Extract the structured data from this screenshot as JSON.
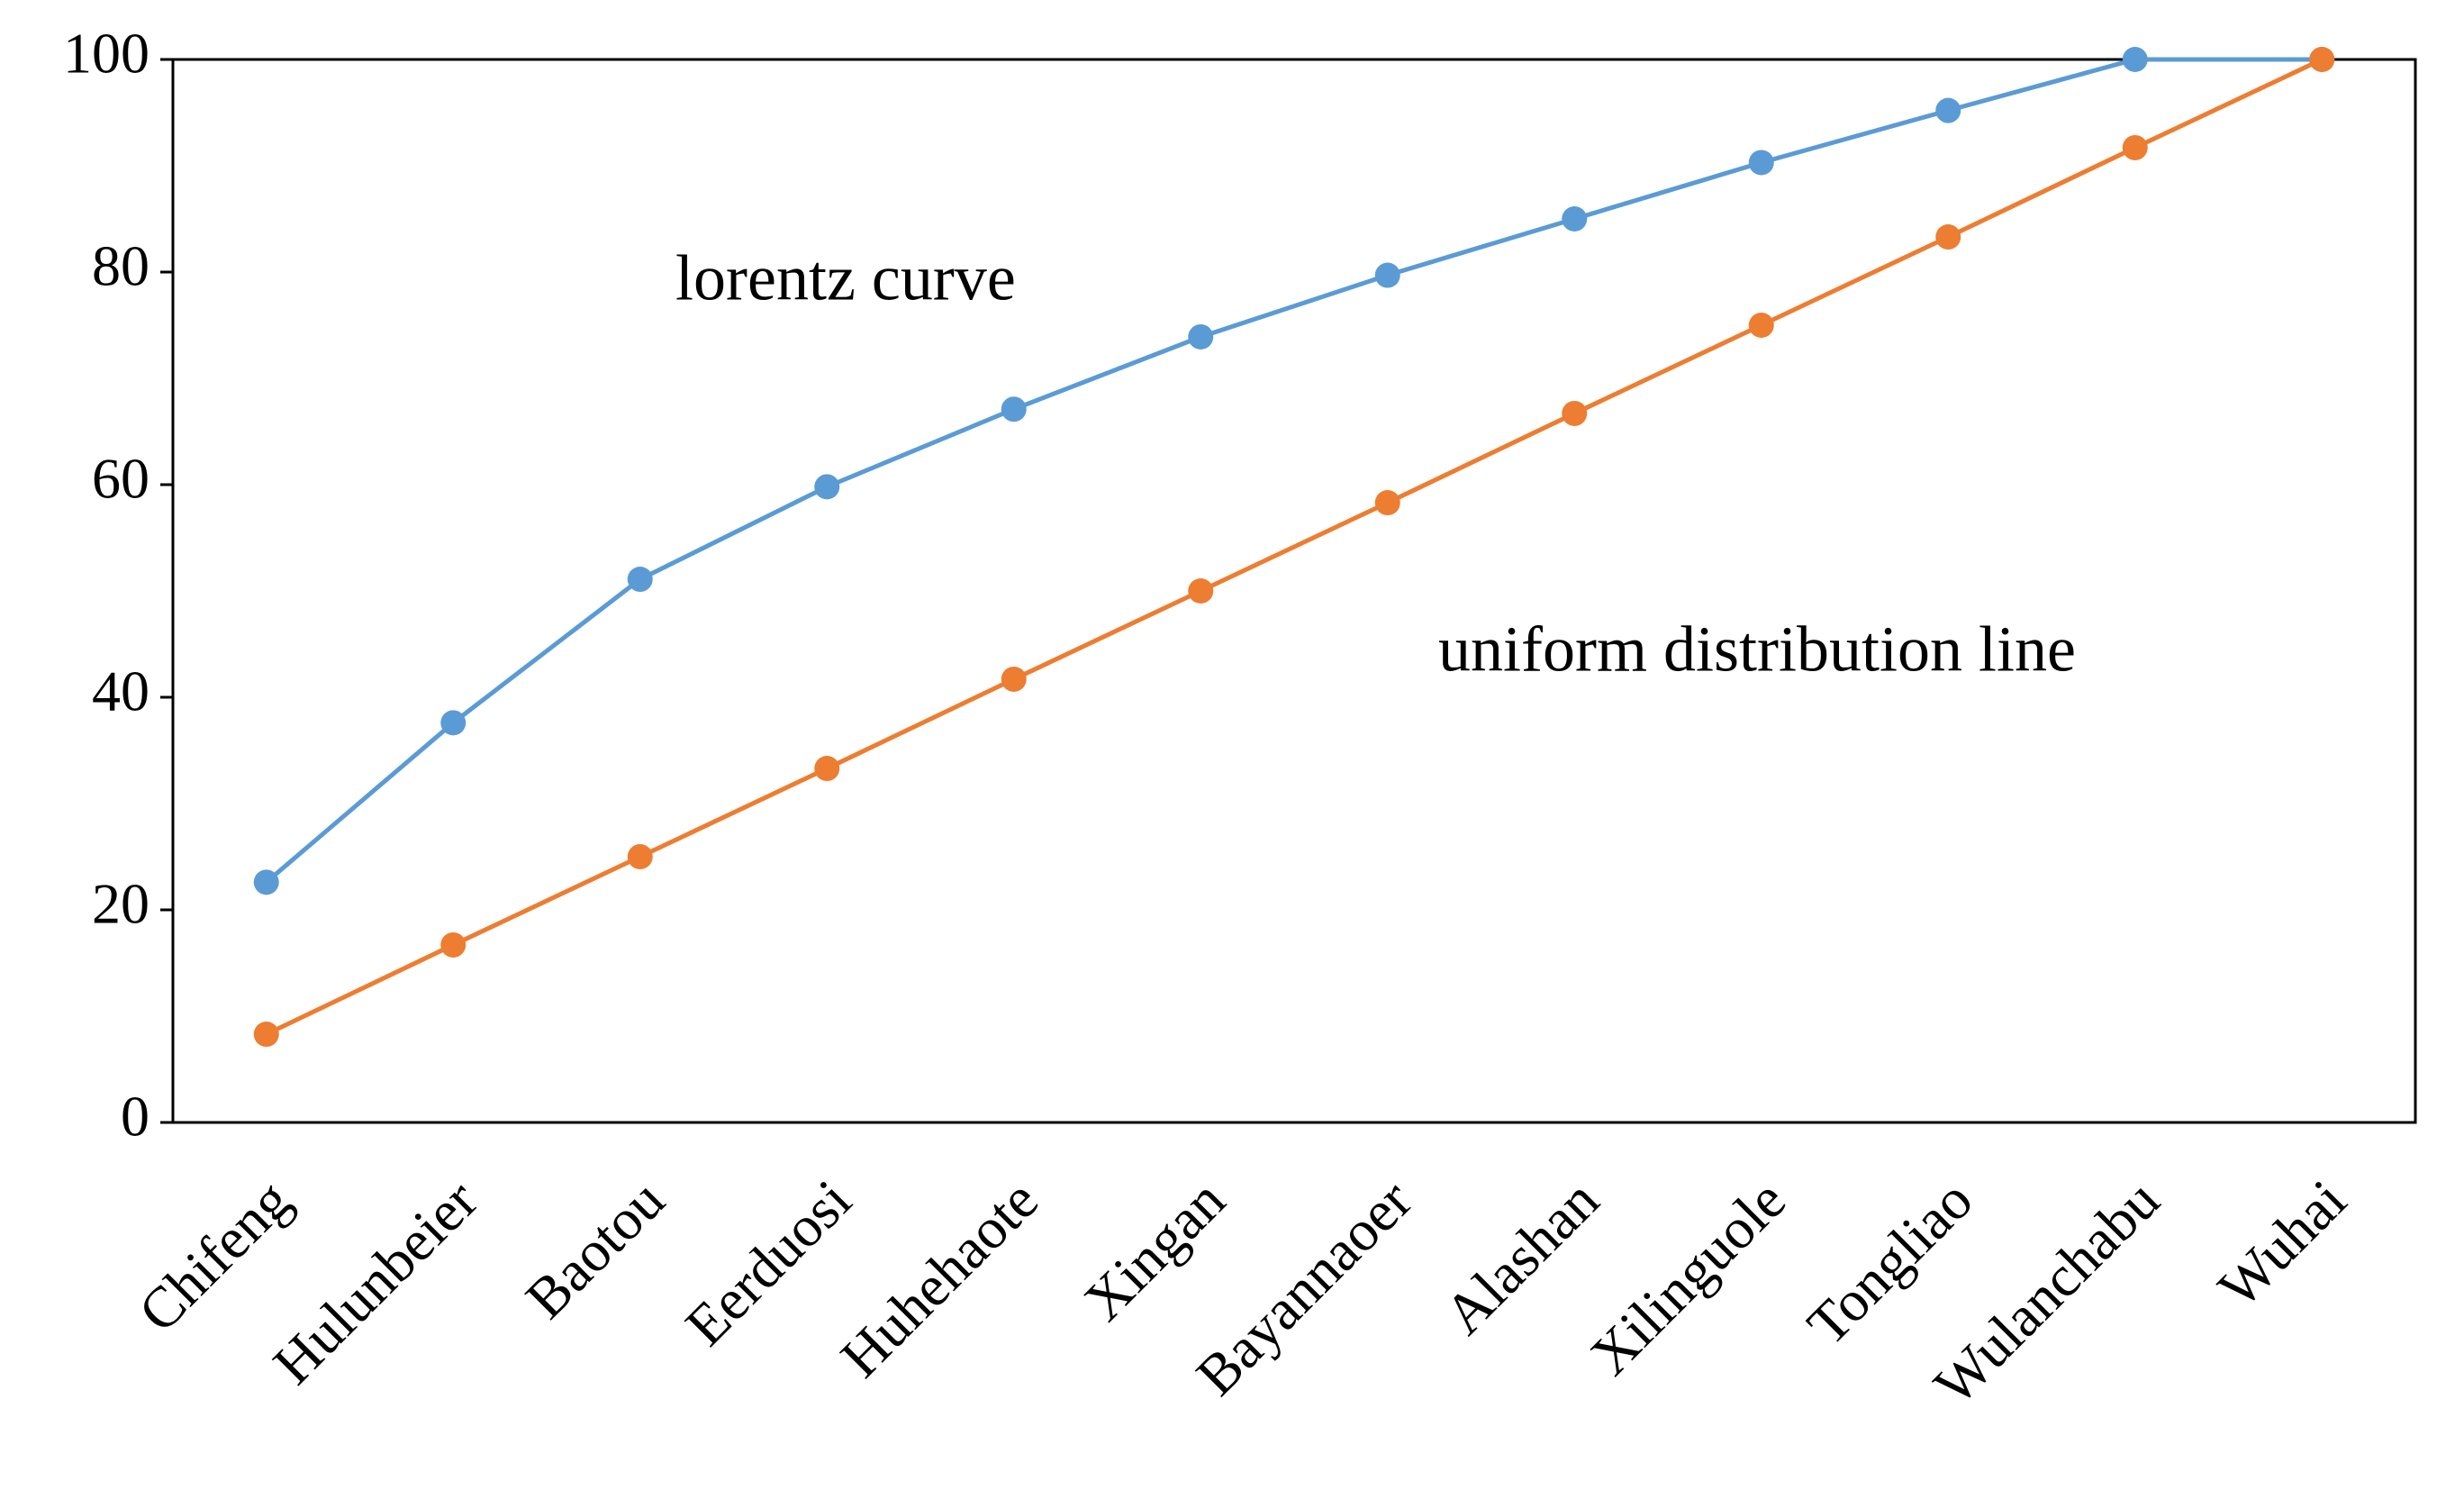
{
  "chart_data": {
    "type": "line",
    "categories": [
      "Chifeng",
      "Hulunbeier",
      "Baotou",
      "Eerduosi",
      "Huhehaote",
      "Xingan",
      "Bayannaoer",
      "Alashan",
      "Xilinguole",
      "Tongliao",
      "Wulanchabu",
      "Wuhai"
    ],
    "series": [
      {
        "name": "lorentz curve",
        "color": "#5b9bd5",
        "values": [
          22.6,
          37.6,
          51.1,
          59.8,
          67.1,
          73.9,
          79.7,
          85.0,
          90.3,
          95.2,
          100,
          100
        ]
      },
      {
        "name": "uniform distribution line",
        "color": "#ed7d31",
        "values": [
          8.3,
          16.7,
          25,
          33.3,
          41.7,
          50,
          58.3,
          66.7,
          75,
          83.3,
          91.7,
          100
        ]
      }
    ],
    "ylim": [
      0,
      100
    ],
    "yticks": [
      0,
      20,
      40,
      60,
      80,
      100
    ],
    "grid": false
  }
}
